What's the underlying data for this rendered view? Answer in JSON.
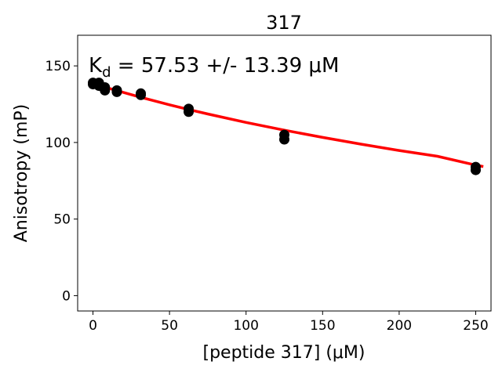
{
  "chart_data": {
    "type": "scatter",
    "title": "317",
    "xlabel": "[peptide 317] (μM)",
    "ylabel": "Anisotropy (mP)",
    "annotation": {
      "prefix": "K",
      "subscript": "d",
      "text": " = 57.53 +/- 13.39 μM"
    },
    "xlim": [
      -10,
      260
    ],
    "ylim": [
      -10,
      170
    ],
    "xticks": [
      0,
      50,
      100,
      150,
      200,
      250
    ],
    "yticks": [
      0,
      50,
      100,
      150
    ],
    "grid": false,
    "series": [
      {
        "kind": "points",
        "color": "#000000",
        "points": [
          [
            0,
            139
          ],
          [
            0,
            138
          ],
          [
            3.9,
            139
          ],
          [
            3.9,
            137
          ],
          [
            7.8,
            136
          ],
          [
            7.8,
            134
          ],
          [
            15.6,
            134
          ],
          [
            15.6,
            133
          ],
          [
            31.25,
            132
          ],
          [
            31.25,
            131
          ],
          [
            62.5,
            122
          ],
          [
            62.5,
            120
          ],
          [
            125,
            105
          ],
          [
            125,
            102
          ],
          [
            250,
            84
          ],
          [
            250,
            82
          ]
        ]
      },
      {
        "kind": "fit",
        "color": "#ff0000",
        "points": [
          [
            0,
            138.5
          ],
          [
            10,
            135.5
          ],
          [
            20,
            132.6
          ],
          [
            30,
            129.8
          ],
          [
            40,
            127.2
          ],
          [
            50,
            124.6
          ],
          [
            62.5,
            121.5
          ],
          [
            75,
            118.6
          ],
          [
            100,
            113.1
          ],
          [
            125,
            108.0
          ],
          [
            150,
            103.3
          ],
          [
            175,
            98.9
          ],
          [
            200,
            94.8
          ],
          [
            225,
            91.0
          ],
          [
            250,
            85.2
          ],
          [
            255,
            84.3
          ]
        ]
      }
    ]
  }
}
